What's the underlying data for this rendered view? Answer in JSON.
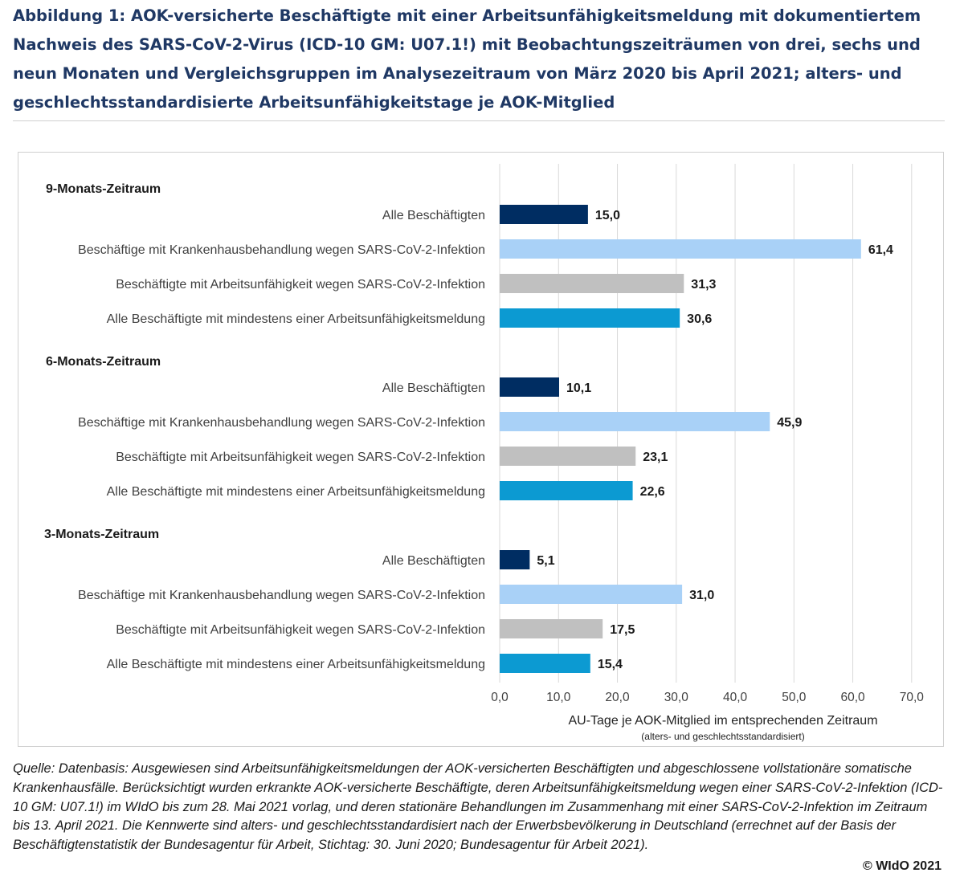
{
  "figure": {
    "title": "Abbildung 1: AOK-versicherte Beschäftigte mit einer Arbeitsunfähigkeitsmeldung mit dokumentiertem Nachweis des SARS-CoV-2-Virus (ICD-10 GM: U07.1!) mit Beobachtungszeiträumen von drei, sechs und neun Monaten und Vergleichsgruppen im Analysezeitraum von März 2020 bis April 2021; alters- und geschlechtsstandardisierte Arbeitsunfähigkeitstage je AOK-Mitglied",
    "source": "Quelle: Datenbasis: Ausgewiesen sind Arbeitsunfähigkeitsmeldungen der AOK-versicherten Beschäftigten und abgeschlossene vollstationäre somatische Krankenhausfälle. Berücksichtigt wurden erkrankte AOK-versicherte Beschäftigte, deren Arbeitsunfähigkeitsmeldung wegen einer SARS-CoV-2-Infektion (ICD-10 GM: U07.1!) im WIdO bis zum 28. Mai 2021 vorlag, und deren stationäre Behandlungen im Zusammenhang mit einer SARS-CoV-2-Infektion im Zeitraum bis 13. April 2021. Die Kennwerte sind alters- und geschlechtsstandardisiert nach der Erwerbsbevölkerung in Deutschland (errechnet auf der Basis der Beschäftigtenstatistik der Bundesagentur für Arbeit, Stichtag: 30. Juni 2020; Bundesagentur für Arbeit 2021).",
    "copyright": "© WIdO 2021"
  },
  "chart_data": {
    "type": "bar",
    "orientation": "horizontal",
    "xlabel": "AU-Tage je AOK-Mitglied im entsprechenden Zeitraum",
    "xlabel_sub": "(alters- und geschlechtsstandardisiert)",
    "xlim": [
      0,
      70
    ],
    "xticks": [
      0,
      10,
      20,
      30,
      40,
      50,
      60,
      70
    ],
    "xtick_labels": [
      "0,0",
      "10,0",
      "20,0",
      "30,0",
      "40,0",
      "50,0",
      "60,0",
      "70,0"
    ],
    "grid": "vertical",
    "series_colors": [
      "#002d62",
      "#a9d1f7",
      "#c0c0c0",
      "#0c9ad2"
    ],
    "groups": [
      {
        "name": "9-Monats-Zeitraum",
        "bars": [
          {
            "label": "Alle Beschäftigten",
            "value": 15.0,
            "value_label": "15,0"
          },
          {
            "label": "Beschäftige mit Krankenhausbehandlung wegen SARS-CoV-2-Infektion",
            "value": 61.4,
            "value_label": "61,4"
          },
          {
            "label": "Beschäftigte mit Arbeitsunfähigkeit wegen SARS-CoV-2-Infektion",
            "value": 31.3,
            "value_label": "31,3"
          },
          {
            "label": "Alle Beschäftigte mit mindestens einer Arbeitsunfähigkeitsmeldung",
            "value": 30.6,
            "value_label": "30,6"
          }
        ]
      },
      {
        "name": "6-Monats-Zeitraum",
        "bars": [
          {
            "label": "Alle Beschäftigten",
            "value": 10.1,
            "value_label": "10,1"
          },
          {
            "label": "Beschäftige mit Krankenhausbehandlung wegen SARS-CoV-2-Infektion",
            "value": 45.9,
            "value_label": "45,9"
          },
          {
            "label": "Beschäftigte mit Arbeitsunfähigkeit wegen SARS-CoV-2-Infektion",
            "value": 23.1,
            "value_label": "23,1"
          },
          {
            "label": "Alle Beschäftigte mit mindestens einer Arbeitsunfähigkeitsmeldung",
            "value": 22.6,
            "value_label": "22,6"
          }
        ]
      },
      {
        "name": "3-Monats-Zeitraum",
        "bars": [
          {
            "label": "Alle Beschäftigten",
            "value": 5.1,
            "value_label": "5,1"
          },
          {
            "label": "Beschäftige mit Krankenhausbehandlung wegen SARS-CoV-2-Infektion",
            "value": 31.0,
            "value_label": "31,0"
          },
          {
            "label": "Beschäftigte mit Arbeitsunfähigkeit wegen SARS-CoV-2-Infektion",
            "value": 17.5,
            "value_label": "17,5"
          },
          {
            "label": "Alle Beschäftigte mit mindestens einer Arbeitsunfähigkeitsmeldung",
            "value": 15.4,
            "value_label": "15,4"
          }
        ]
      }
    ]
  }
}
